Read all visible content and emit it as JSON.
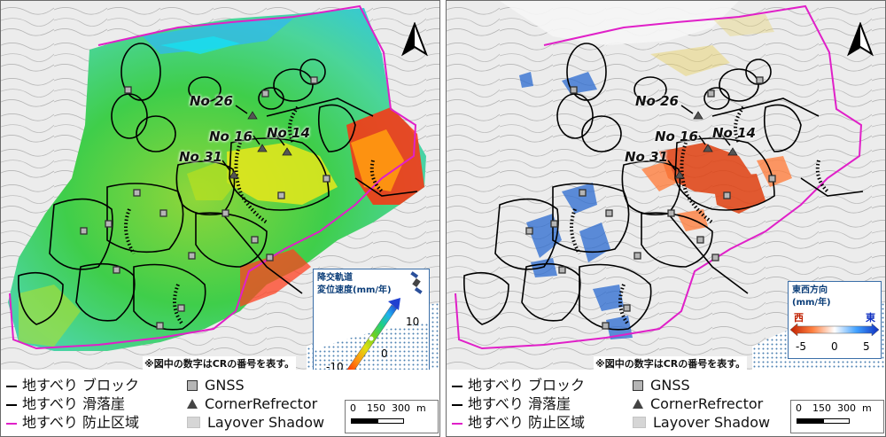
{
  "panels": [
    {
      "legend_box": {
        "title_line1": "降交軌道",
        "title_line2": "変位速度(mm/年)",
        "max_label": "10",
        "mid_label": "0",
        "min_label": "-10"
      },
      "note": "※図中の数字はCRの番号を表す。"
    },
    {
      "legend_box": {
        "title_line1": "東西方向",
        "title_line2": "(mm/年)",
        "west_label": "西",
        "east_label": "東",
        "min_label": "-5",
        "mid_label": "0",
        "max_label": "5"
      },
      "note": "※図中の数字はCRの番号を表す。"
    }
  ],
  "cr_labels": [
    "No 26",
    "No 16",
    "No 14",
    "No 31"
  ],
  "legend": {
    "block": "地すべり ブロック",
    "scarp": "地すべり 滑落崖",
    "zone": "地すべり 防止区域",
    "gnss": "GNSS",
    "corner_reflector": "CornerRefrector",
    "layover": "Layover Shadow"
  },
  "scale": {
    "ticks": [
      "0",
      "150",
      "300"
    ],
    "unit": "m"
  },
  "colors": {
    "zone_boundary": "#e020c8",
    "block_line": "#000000",
    "gnss_fill": "#b5b5b5",
    "velocity_ramp": [
      "#2040d0",
      "#20b0f0",
      "#20d080",
      "#70d020",
      "#e0e010",
      "#ff9010",
      "#ff2000"
    ],
    "ew_ramp": [
      "#c02000",
      "#ff8040",
      "#ffffff",
      "#40a0ff",
      "#1030c0"
    ]
  },
  "icons": [
    "north-arrow-icon",
    "satellite-icon",
    "gnss-square-icon",
    "corner-reflector-triangle-icon"
  ]
}
